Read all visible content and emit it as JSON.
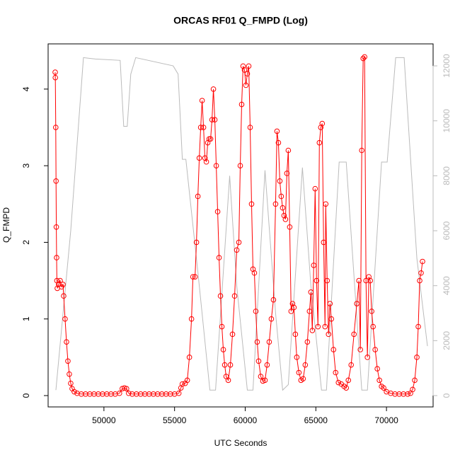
{
  "chart_data": {
    "type": "line",
    "title": "ORCAS RF01 Q_FMPD (Log)",
    "x_label": "UTC Seconds",
    "y_label": "Q_FMPD",
    "xlim": [
      46050,
      73300
    ],
    "xticks": [
      50000,
      55000,
      60000,
      65000,
      70000
    ],
    "ylim": [
      -0.148,
      4.59
    ],
    "yticks": [
      0,
      1,
      2,
      3,
      4
    ],
    "y2lim": [
      -412,
      12800
    ],
    "y2ticks": [
      0,
      2000,
      4000,
      6000,
      8000,
      10000,
      12000
    ],
    "series": [
      {
        "color": "#bbbbbb",
        "axis": "y2",
        "markers": false,
        "x": [
          46600,
          47650,
          48550,
          49400,
          51150,
          51400,
          51650,
          51900,
          52250,
          54900,
          55250,
          55550,
          55800,
          56650,
          57500,
          57900,
          58900,
          59400,
          60150,
          60550,
          61400,
          62150,
          62650,
          63050,
          64050,
          64650,
          65400,
          65750,
          66650,
          67150,
          68250,
          68650,
          69650,
          70050,
          70650,
          71250,
          72150,
          72900
        ],
        "values": [
          200,
          6000,
          12300,
          12250,
          12200,
          9800,
          9800,
          11700,
          12300,
          12000,
          11700,
          8600,
          8600,
          4500,
          200,
          200,
          8000,
          4000,
          200,
          200,
          8200,
          3000,
          200,
          400,
          8300,
          4000,
          200,
          200,
          8500,
          8500,
          200,
          200,
          8500,
          8500,
          12300,
          12300,
          5000,
          1800
        ]
      },
      {
        "color": "#ff0000",
        "axis": "y",
        "markers": true,
        "x": [
          46550,
          46560,
          46590,
          46610,
          46630,
          46650,
          46670,
          46700,
          46800,
          46900,
          47000,
          47100,
          47150,
          47250,
          47350,
          47450,
          47550,
          47650,
          47750,
          47900,
          48100,
          48400,
          48700,
          49000,
          49300,
          49600,
          49900,
          50200,
          50500,
          50800,
          51100,
          51300,
          51450,
          51600,
          51750,
          52000,
          52300,
          52600,
          52900,
          53200,
          53500,
          53800,
          54100,
          54400,
          54700,
          55000,
          55300,
          55450,
          55550,
          55750,
          55900,
          56050,
          56200,
          56300,
          56450,
          56550,
          56650,
          56750,
          56850,
          56950,
          57050,
          57150,
          57250,
          57350,
          57450,
          57550,
          57650,
          57750,
          57850,
          57950,
          58050,
          58150,
          58250,
          58350,
          58450,
          58550,
          58650,
          58800,
          58950,
          59100,
          59250,
          59400,
          59550,
          59650,
          59750,
          59850,
          59950,
          60050,
          60150,
          60250,
          60350,
          60450,
          60550,
          60650,
          60750,
          60850,
          60950,
          61100,
          61250,
          61400,
          61550,
          61700,
          61850,
          62000,
          62150,
          62250,
          62350,
          62450,
          62550,
          62650,
          62750,
          62850,
          62950,
          63050,
          63150,
          63250,
          63350,
          63450,
          63550,
          63650,
          63800,
          63950,
          64100,
          64250,
          64400,
          64550,
          64650,
          64750,
          64850,
          64950,
          65050,
          65150,
          65250,
          65350,
          65450,
          65550,
          65650,
          65700,
          65800,
          65900,
          66000,
          66100,
          66250,
          66400,
          66600,
          66800,
          67000,
          67150,
          67300,
          67500,
          67700,
          67900,
          68050,
          68150,
          68250,
          68350,
          68450,
          68550,
          68650,
          68750,
          68850,
          68950,
          69050,
          69200,
          69350,
          69500,
          69650,
          69800,
          70000,
          70300,
          70600,
          70900,
          71200,
          71500,
          71700,
          71850,
          72000,
          72150,
          72250,
          72350,
          72450,
          72550
        ],
        "values": [
          4.22,
          4.15,
          3.5,
          2.8,
          2.2,
          1.8,
          1.5,
          1.4,
          1.45,
          1.5,
          1.42,
          1.45,
          1.3,
          1.0,
          0.7,
          0.45,
          0.28,
          0.16,
          0.09,
          0.05,
          0.03,
          0.02,
          0.02,
          0.02,
          0.02,
          0.02,
          0.02,
          0.02,
          0.02,
          0.02,
          0.03,
          0.09,
          0.1,
          0.09,
          0.03,
          0.02,
          0.02,
          0.02,
          0.02,
          0.02,
          0.02,
          0.02,
          0.02,
          0.02,
          0.02,
          0.02,
          0.03,
          0.1,
          0.15,
          0.16,
          0.2,
          0.5,
          1.0,
          1.55,
          1.55,
          2.0,
          2.6,
          3.1,
          3.5,
          3.85,
          3.5,
          3.1,
          3.05,
          3.3,
          3.35,
          3.35,
          3.6,
          4.0,
          3.6,
          3.0,
          2.4,
          1.8,
          1.3,
          0.9,
          0.6,
          0.4,
          0.25,
          0.2,
          0.4,
          0.8,
          1.3,
          1.9,
          2.0,
          3.0,
          3.8,
          4.3,
          4.25,
          4.05,
          4.2,
          4.3,
          3.5,
          2.5,
          1.65,
          1.6,
          1.1,
          0.7,
          0.45,
          0.25,
          0.19,
          0.2,
          0.4,
          0.7,
          1.0,
          1.25,
          2.5,
          3.45,
          3.3,
          2.8,
          2.6,
          2.45,
          2.35,
          2.3,
          2.9,
          3.2,
          2.2,
          1.1,
          1.2,
          1.15,
          0.8,
          0.5,
          0.3,
          0.2,
          0.22,
          0.4,
          0.7,
          1.1,
          1.35,
          0.85,
          1.7,
          2.7,
          1.5,
          0.9,
          3.3,
          3.5,
          3.55,
          2.0,
          0.9,
          2.5,
          1.5,
          0.8,
          1.2,
          1.0,
          0.6,
          0.3,
          0.17,
          0.15,
          0.12,
          0.1,
          0.2,
          0.4,
          0.8,
          1.2,
          1.5,
          0.6,
          3.2,
          4.4,
          4.42,
          1.5,
          0.5,
          1.55,
          1.5,
          1.1,
          0.9,
          0.6,
          0.35,
          0.2,
          0.12,
          0.1,
          0.05,
          0.03,
          0.02,
          0.02,
          0.02,
          0.02,
          0.03,
          0.08,
          0.2,
          0.5,
          0.9,
          1.5,
          1.6,
          1.75
        ]
      }
    ]
  }
}
